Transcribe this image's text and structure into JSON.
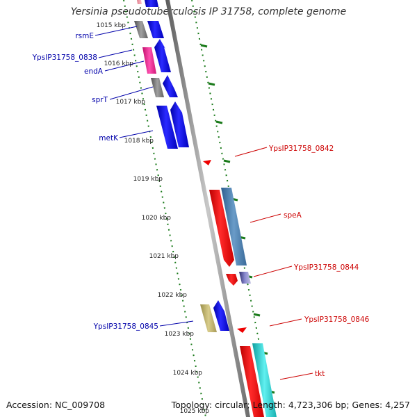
{
  "title": "Yersinia pseudotuberculosis IP 31758, complete genome",
  "footer": {
    "accession": "Accession: NC_009708",
    "topology": "Topology: circular; Length: 4,723,306 bp; Genes: 4,257"
  },
  "colors": {
    "backbone": "#7a7a7a",
    "tick": "#1a7a1a",
    "left_label": "#0000aa",
    "right_label": "#cc0000",
    "blue_gene": "#0000ee",
    "red_gene": "#ee0000",
    "steel_gene": "#4a7fb0",
    "cyan_gene": "#20c8c8",
    "olive_gene": "#bdb06a",
    "magenta_gene": "#ee1a8f",
    "gray_gene": "#707070"
  },
  "scale": {
    "unit": "kbp",
    "ticks": [
      "1015 kbp",
      "1016 kbp",
      "1017 kbp",
      "1018 kbp",
      "1019 kbp",
      "1020 kbp",
      "1021 kbp",
      "1022 kbp",
      "1023 kbp",
      "1024 kbp",
      "1025 kbp"
    ]
  },
  "features": [
    {
      "label": "rsmE",
      "strand": "left"
    },
    {
      "label": "YpsIP31758_0838",
      "strand": "left"
    },
    {
      "label": "endA",
      "strand": "left"
    },
    {
      "label": "sprT",
      "strand": "left"
    },
    {
      "label": "metK",
      "strand": "left"
    },
    {
      "label": "YpsIP31758_0842",
      "strand": "right"
    },
    {
      "label": "speA",
      "strand": "right"
    },
    {
      "label": "YpsIP31758_0844",
      "strand": "right"
    },
    {
      "label": "YpsIP31758_0845",
      "strand": "left"
    },
    {
      "label": "YpsIP31758_0846",
      "strand": "right"
    },
    {
      "label": "tkt",
      "strand": "right"
    }
  ]
}
